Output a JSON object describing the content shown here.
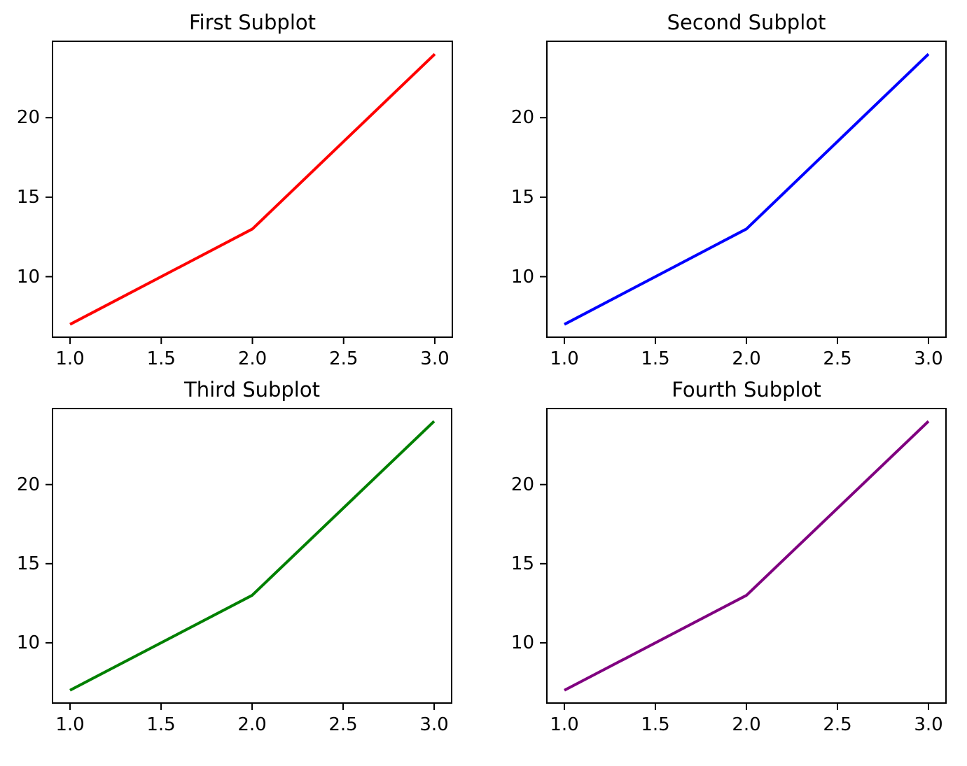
{
  "figure": {
    "background": "#ffffff",
    "spine_color": "#000000",
    "tick_color": "#000000",
    "text_color": "#000000"
  },
  "chart_data": [
    {
      "type": "line",
      "title": "First Subplot",
      "color": "#ff0000",
      "color_name": "red",
      "x": [
        1,
        2,
        3
      ],
      "y": [
        7,
        13,
        24
      ],
      "xlim": [
        0.9,
        3.1
      ],
      "ylim": [
        6.15,
        24.85
      ],
      "xticks": [
        1.0,
        1.5,
        2.0,
        2.5,
        3.0
      ],
      "xtick_labels": [
        "1.0",
        "1.5",
        "2.0",
        "2.5",
        "3.0"
      ],
      "yticks": [
        10,
        15,
        20
      ],
      "ytick_labels": [
        "10",
        "15",
        "20"
      ],
      "grid": false,
      "legend": null
    },
    {
      "type": "line",
      "title": "Second Subplot",
      "color": "#0000ff",
      "color_name": "blue",
      "x": [
        1,
        2,
        3
      ],
      "y": [
        7,
        13,
        24
      ],
      "xlim": [
        0.9,
        3.1
      ],
      "ylim": [
        6.15,
        24.85
      ],
      "xticks": [
        1.0,
        1.5,
        2.0,
        2.5,
        3.0
      ],
      "xtick_labels": [
        "1.0",
        "1.5",
        "2.0",
        "2.5",
        "3.0"
      ],
      "yticks": [
        10,
        15,
        20
      ],
      "ytick_labels": [
        "10",
        "15",
        "20"
      ],
      "grid": false,
      "legend": null
    },
    {
      "type": "line",
      "title": "Third Subplot",
      "color": "#008000",
      "color_name": "green",
      "x": [
        1,
        2,
        3
      ],
      "y": [
        7,
        13,
        24
      ],
      "xlim": [
        0.9,
        3.1
      ],
      "ylim": [
        6.15,
        24.85
      ],
      "xticks": [
        1.0,
        1.5,
        2.0,
        2.5,
        3.0
      ],
      "xtick_labels": [
        "1.0",
        "1.5",
        "2.0",
        "2.5",
        "3.0"
      ],
      "yticks": [
        10,
        15,
        20
      ],
      "ytick_labels": [
        "10",
        "15",
        "20"
      ],
      "grid": false,
      "legend": null
    },
    {
      "type": "line",
      "title": "Fourth Subplot",
      "color": "#800080",
      "color_name": "purple",
      "x": [
        1,
        2,
        3
      ],
      "y": [
        7,
        13,
        24
      ],
      "xlim": [
        0.9,
        3.1
      ],
      "ylim": [
        6.15,
        24.85
      ],
      "xticks": [
        1.0,
        1.5,
        2.0,
        2.5,
        3.0
      ],
      "xtick_labels": [
        "1.0",
        "1.5",
        "2.0",
        "2.5",
        "3.0"
      ],
      "yticks": [
        10,
        15,
        20
      ],
      "ytick_labels": [
        "10",
        "15",
        "20"
      ],
      "grid": false,
      "legend": null
    }
  ]
}
